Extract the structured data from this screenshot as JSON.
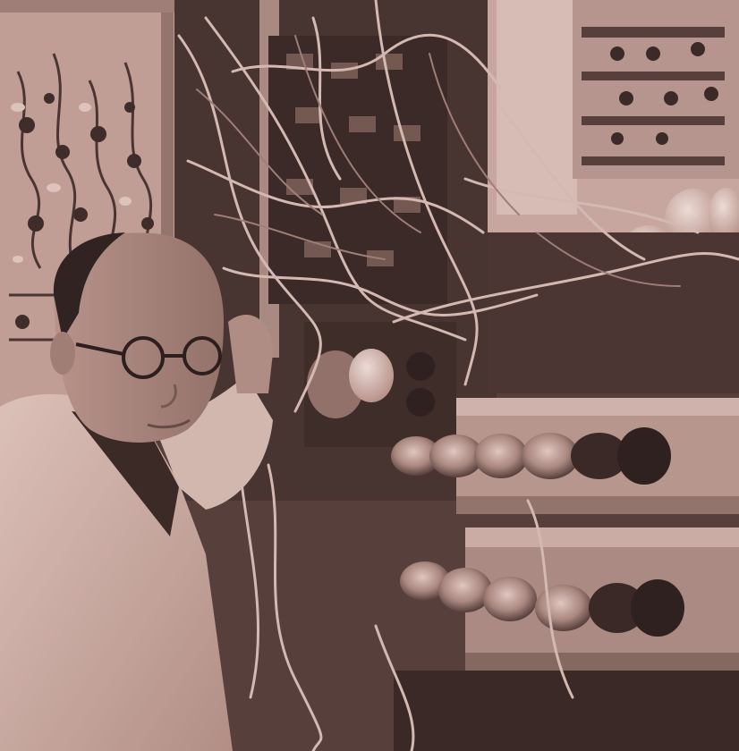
{
  "photo": {
    "tone": {
      "paper": "#c7a49a",
      "mid": "#8a6e66",
      "dark": "#3a2a28",
      "ink": "#1a100f"
    },
    "subjects": [
      "man-in-white-coat",
      "glasses",
      "electronics-rack",
      "vacuum-tubes",
      "cables",
      "circuit-board"
    ]
  }
}
